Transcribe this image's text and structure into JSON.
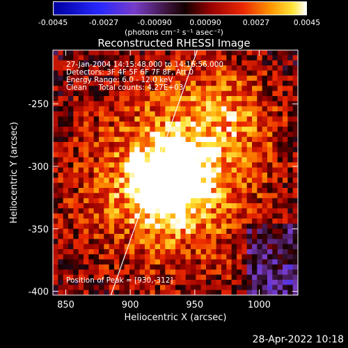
{
  "colorbar": {
    "tick_labels": [
      "-0.0045",
      "-0.0027",
      "-0.00090",
      "0.00090",
      "0.0027",
      "0.0045"
    ],
    "units_label": "(photons cm⁻² s⁻¹ asec⁻²)"
  },
  "overlay": {
    "line1": "27-Jan-2004 14:15:48.000 to 14:16:56.000",
    "line2": "Detectors: 3F 4F 5F 6F 7F 8F, Att 0",
    "line3": "Energy Range: 6.0 - 12.0 keV",
    "line4": "Clean     Total counts: 4.27E+03",
    "peak": "Position of Peak = [930,-312]"
  },
  "footer": {
    "date": "28-Apr-2022 10:18"
  },
  "chart_data": {
    "type": "heatmap",
    "title": "Reconstructed RHESSI Image",
    "xlabel": "Heliocentric X (arcsec)",
    "ylabel": "Heliocentric Y (arcsec)",
    "xlim": [
      840,
      1030
    ],
    "ylim": [
      -403,
      -207
    ],
    "x_ticks": [
      850,
      900,
      950,
      1000
    ],
    "y_ticks": [
      -250,
      -300,
      -350,
      -400
    ],
    "colorbar_range": [
      -0.0045,
      0.0045
    ],
    "peak": {
      "x": 930,
      "y": -312
    },
    "limb_line": {
      "x": [
        885,
        952
      ],
      "y": [
        -403,
        -207
      ]
    }
  }
}
